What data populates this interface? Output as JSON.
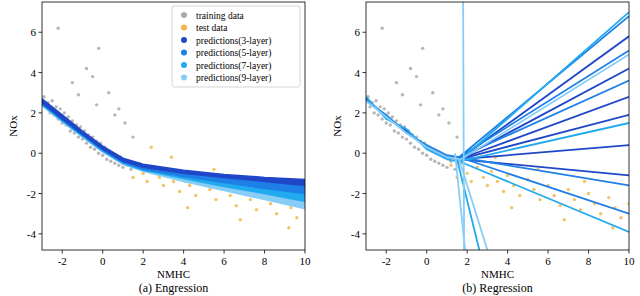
{
  "chart_data": [
    {
      "type": "scatter",
      "title": "(a) Engression",
      "xlabel": "NMHC",
      "ylabel": "NOx",
      "xlim": [
        -3,
        10
      ],
      "ylim": [
        -4.8,
        7.5
      ],
      "xticks": [
        -2,
        0,
        2,
        4,
        6,
        8,
        10
      ],
      "yticks": [
        -4,
        -2,
        0,
        2,
        4,
        6
      ],
      "legend": "upper right",
      "series": [
        {
          "name": "training data",
          "type": "scatter",
          "marker": "circle",
          "color": "#a9a9a9",
          "x": [
            -2.9,
            -2.8,
            -2.7,
            -2.6,
            -2.5,
            -2.4,
            -2.3,
            -2.2,
            -2.1,
            -2.0,
            -1.9,
            -1.8,
            -1.7,
            -1.6,
            -1.5,
            -1.4,
            -1.3,
            -1.2,
            -1.1,
            -1.0,
            -0.9,
            -0.8,
            -0.7,
            -0.6,
            -0.5,
            -0.4,
            -0.3,
            -0.2,
            -0.1,
            0.0,
            0.1,
            0.2,
            0.3,
            0.4,
            0.5,
            0.6,
            0.7,
            0.8,
            0.9,
            1.0,
            1.2,
            1.4,
            1.6,
            -1.5,
            -0.8,
            -0.2,
            0.3,
            -1.2,
            0.8,
            -2.2,
            -0.5,
            1.1,
            1.5,
            -0.3,
            0.6
          ],
          "values": [
            2.8,
            2.3,
            2.5,
            2.0,
            2.6,
            1.9,
            2.3,
            1.7,
            2.2,
            1.5,
            2.0,
            1.4,
            1.8,
            1.1,
            1.6,
            1.0,
            1.4,
            0.8,
            1.3,
            0.7,
            1.1,
            0.5,
            0.9,
            0.3,
            0.8,
            0.2,
            0.6,
            0.0,
            0.5,
            -0.1,
            0.3,
            -0.3,
            0.1,
            -0.4,
            0.0,
            -0.5,
            -0.1,
            -0.6,
            -0.2,
            -0.7,
            -0.4,
            -0.8,
            -0.5,
            3.5,
            4.2,
            5.2,
            3.0,
            2.9,
            2.2,
            6.2,
            3.8,
            1.5,
            0.8,
            2.4,
            1.9
          ]
        },
        {
          "name": "test data",
          "type": "scatter",
          "marker": "circle",
          "color": "#f2b84b",
          "x": [
            1.2,
            1.5,
            1.8,
            2.0,
            2.2,
            2.5,
            2.8,
            3.0,
            3.2,
            3.5,
            3.8,
            4.0,
            4.3,
            4.6,
            5.0,
            5.3,
            5.6,
            6.0,
            6.3,
            6.6,
            7.0,
            7.3,
            7.6,
            8.0,
            8.3,
            8.6,
            9.0,
            9.3,
            9.6,
            10.0,
            2.4,
            3.4,
            5.5,
            7.8,
            9.2,
            4.2,
            6.8
          ],
          "values": [
            -0.6,
            -1.2,
            -0.5,
            -1.0,
            -1.4,
            -0.7,
            -1.2,
            -1.6,
            -0.9,
            -1.4,
            -1.9,
            -1.1,
            -1.6,
            -2.1,
            -1.3,
            -1.8,
            -2.3,
            -1.6,
            -2.1,
            -2.6,
            -1.8,
            -2.3,
            -2.8,
            -2.0,
            -2.5,
            -3.0,
            -2.2,
            -2.7,
            -3.2,
            -2.5,
            0.3,
            -0.2,
            -0.8,
            -1.4,
            -3.7,
            -2.7,
            -3.3
          ]
        },
        {
          "name": "predictions(3-layer)",
          "type": "band",
          "marker": "circle",
          "color": "#1f47c8",
          "x": [
            -3,
            -2,
            -1,
            0,
            1,
            2,
            4,
            6,
            8,
            10,
            null,
            -3,
            -2,
            -1,
            0,
            1,
            2,
            4,
            6,
            8,
            10
          ],
          "values": [
            2.7,
            1.9,
            1.1,
            0.35,
            -0.25,
            -0.55,
            -0.85,
            -1.05,
            -1.2,
            -1.3,
            null,
            2.5,
            1.7,
            0.95,
            0.2,
            -0.4,
            -0.7,
            -1.0,
            -1.2,
            -1.4,
            -1.6
          ]
        },
        {
          "name": "predictions(5-layer)",
          "type": "band",
          "marker": "circle",
          "color": "#1e7fe6",
          "x": [
            -3,
            -2,
            -1,
            0,
            1,
            2,
            4,
            6,
            8,
            10,
            null,
            -3,
            -2,
            -1,
            0,
            1,
            2,
            4,
            6,
            8,
            10
          ],
          "values": [
            2.65,
            1.85,
            1.05,
            0.3,
            -0.3,
            -0.6,
            -0.95,
            -1.15,
            -1.3,
            -1.45,
            null,
            2.45,
            1.65,
            0.9,
            0.15,
            -0.45,
            -0.8,
            -1.15,
            -1.45,
            -1.75,
            -2.0
          ]
        },
        {
          "name": "predictions(7-layer)",
          "type": "band",
          "marker": "circle",
          "color": "#22aaf0",
          "x": [
            -3,
            -2,
            -1,
            0,
            1,
            2,
            4,
            6,
            8,
            10,
            null,
            -3,
            -2,
            -1,
            0,
            1,
            2,
            4,
            6,
            8,
            10
          ],
          "values": [
            2.6,
            1.8,
            1.0,
            0.25,
            -0.35,
            -0.65,
            -1.0,
            -1.25,
            -1.45,
            -1.6,
            null,
            2.4,
            1.6,
            0.85,
            0.1,
            -0.5,
            -0.85,
            -1.25,
            -1.65,
            -2.0,
            -2.4
          ]
        },
        {
          "name": "predictions(9-layer)",
          "type": "band",
          "marker": "circle",
          "color": "#87cdf5",
          "x": [
            -3,
            -2,
            -1,
            0,
            1,
            2,
            4,
            6,
            8,
            10,
            null,
            -3,
            -2,
            -1,
            0,
            1,
            2,
            4,
            6,
            8,
            10
          ],
          "values": [
            2.55,
            1.75,
            0.95,
            0.2,
            -0.4,
            -0.7,
            -1.05,
            -1.3,
            -1.55,
            -1.7,
            null,
            2.35,
            1.55,
            0.8,
            0.05,
            -0.55,
            -0.9,
            -1.4,
            -1.85,
            -2.3,
            -2.75
          ]
        }
      ]
    },
    {
      "type": "scatter",
      "title": "(b) Regression",
      "xlabel": "NMHC",
      "ylabel": "NOx",
      "xlim": [
        -3,
        10
      ],
      "ylim": [
        -4.8,
        7.5
      ],
      "xticks": [
        -2,
        0,
        2,
        4,
        6,
        8,
        10
      ],
      "yticks": [
        -4,
        -2,
        0,
        2,
        4,
        6
      ],
      "series": [
        {
          "type": "scatter",
          "marker": "circle",
          "color": "#a9a9a9",
          "x": [
            -2.9,
            -2.8,
            -2.7,
            -2.6,
            -2.5,
            -2.4,
            -2.3,
            -2.2,
            -2.1,
            -2.0,
            -1.9,
            -1.8,
            -1.7,
            -1.6,
            -1.5,
            -1.4,
            -1.3,
            -1.2,
            -1.1,
            -1.0,
            -0.9,
            -0.8,
            -0.7,
            -0.6,
            -0.5,
            -0.4,
            -0.3,
            -0.2,
            -0.1,
            0.0,
            0.1,
            0.2,
            0.3,
            0.4,
            0.5,
            0.6,
            0.7,
            0.8,
            0.9,
            1.0,
            1.2,
            1.4,
            1.6,
            -1.5,
            -0.8,
            -0.2,
            0.3,
            -1.2,
            0.8,
            -2.2,
            -0.5,
            1.1,
            1.5,
            -0.3,
            0.6
          ],
          "values": [
            2.8,
            2.3,
            2.5,
            2.0,
            2.6,
            1.9,
            2.3,
            1.7,
            2.2,
            1.5,
            2.0,
            1.4,
            1.8,
            1.1,
            1.6,
            1.0,
            1.4,
            0.8,
            1.3,
            0.7,
            1.1,
            0.5,
            0.9,
            0.3,
            0.8,
            0.2,
            0.6,
            0.0,
            0.5,
            -0.1,
            0.3,
            -0.3,
            0.1,
            -0.4,
            0.0,
            -0.5,
            -0.1,
            -0.6,
            -0.2,
            -0.7,
            -0.4,
            -0.8,
            -0.5,
            3.5,
            4.2,
            5.2,
            3.0,
            2.9,
            2.2,
            6.2,
            3.8,
            1.5,
            0.8,
            2.4,
            1.9
          ]
        },
        {
          "type": "scatter",
          "marker": "circle",
          "color": "#f2b84b",
          "x": [
            1.2,
            1.5,
            1.8,
            2.0,
            2.2,
            2.5,
            2.8,
            3.0,
            3.2,
            3.5,
            3.8,
            4.0,
            4.3,
            4.6,
            5.0,
            5.3,
            5.6,
            6.0,
            6.3,
            6.6,
            7.0,
            7.3,
            7.6,
            8.0,
            8.3,
            8.6,
            9.0,
            9.3,
            9.6,
            10.0,
            2.4,
            3.4,
            5.5,
            7.8,
            9.2,
            4.2,
            6.8
          ],
          "values": [
            -0.6,
            -1.2,
            -0.5,
            -1.0,
            -1.4,
            -0.7,
            -1.2,
            -1.6,
            -0.9,
            -1.4,
            -1.9,
            -1.1,
            -1.6,
            -2.1,
            -1.3,
            -1.8,
            -2.3,
            -1.6,
            -2.1,
            -2.6,
            -1.8,
            -2.3,
            -2.8,
            -2.0,
            -2.5,
            -3.0,
            -2.2,
            -2.7,
            -3.2,
            -2.5,
            0.3,
            -0.2,
            -0.8,
            -1.4,
            -3.7,
            -2.7,
            -3.3
          ]
        },
        {
          "type": "line",
          "color": "#1f47c8",
          "x": [
            -3,
            -2,
            -1,
            0,
            1,
            1.6,
            null,
            1.6,
            10,
            null,
            1.6,
            10,
            null,
            1.6,
            10,
            null,
            1.6,
            10,
            null,
            1.6,
            10,
            null,
            1.6,
            10
          ],
          "values": [
            2.7,
            1.8,
            1.1,
            0.3,
            -0.2,
            -0.3,
            null,
            -0.3,
            5.8,
            null,
            -0.3,
            4.2,
            null,
            -0.3,
            2.8,
            null,
            -0.3,
            1.9,
            null,
            -0.3,
            0.4,
            null,
            -0.3,
            -1.1
          ]
        },
        {
          "type": "line",
          "color": "#1e7fe6",
          "x": [
            -3,
            -2,
            -1,
            0,
            1,
            1.6,
            null,
            1.6,
            10,
            null,
            1.6,
            10,
            null,
            1.6,
            10,
            null,
            1.6,
            10,
            null,
            1.6,
            10
          ],
          "values": [
            2.6,
            1.9,
            1.0,
            0.4,
            -0.1,
            -0.2,
            null,
            -0.2,
            6.8,
            null,
            -0.2,
            5.1,
            null,
            -0.2,
            3.6,
            null,
            -0.2,
            -1.6,
            null,
            -0.2,
            -3.0
          ]
        },
        {
          "type": "line",
          "color": "#22aaf0",
          "x": [
            -3,
            -2,
            -1,
            0,
            1,
            1.6,
            null,
            1.6,
            10,
            null,
            1.6,
            10,
            null,
            1.6,
            10,
            null,
            1.5,
            2.6
          ],
          "values": [
            2.8,
            1.7,
            1.2,
            0.2,
            -0.3,
            -0.4,
            null,
            -0.4,
            7.0,
            null,
            -0.4,
            1.5,
            null,
            -0.4,
            -3.9,
            null,
            -0.3,
            -4.8
          ]
        },
        {
          "type": "line",
          "color": "#87cdf5",
          "x": [
            -3,
            -2,
            -1,
            0,
            1,
            1.7,
            null,
            1.7,
            10,
            null,
            1.6,
            3.0,
            null,
            1.4,
            1.9,
            null,
            1.8,
            1.85
          ],
          "values": [
            2.6,
            1.8,
            1.0,
            0.3,
            -0.2,
            -0.3,
            null,
            -0.3,
            4.9,
            null,
            -0.3,
            -4.8,
            null,
            0.0,
            -4.8,
            null,
            7.5,
            -4.8
          ]
        }
      ]
    }
  ]
}
